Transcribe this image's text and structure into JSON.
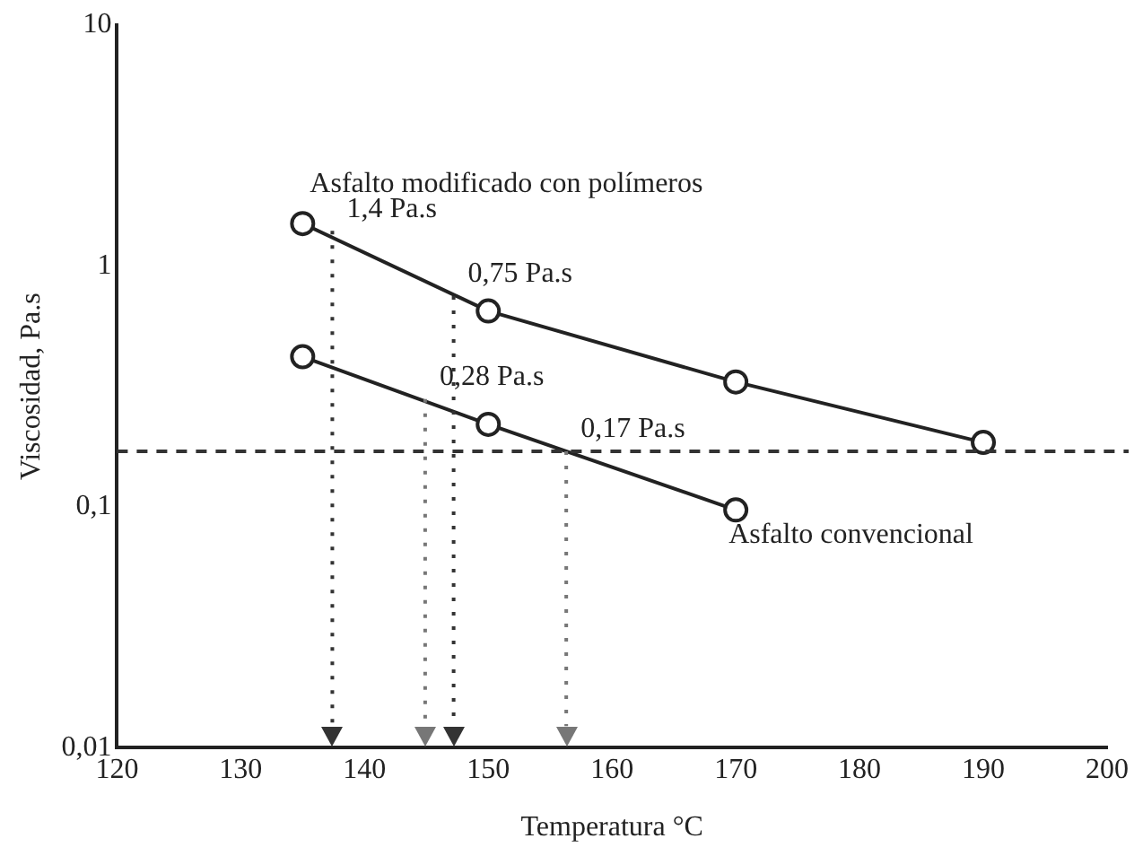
{
  "chart_data": {
    "type": "line",
    "xlabel": "Temperatura °C",
    "ylabel": "Viscosidad, Pa.s",
    "log": "y",
    "xlim": [
      120,
      200
    ],
    "xticks": [
      120,
      130,
      140,
      150,
      160,
      170,
      180,
      190,
      200
    ],
    "ylim": [
      0.01,
      10
    ],
    "yticks": [
      {
        "value": 0.01,
        "label": "0,01"
      },
      {
        "value": 0.1,
        "label": "0,1"
      },
      {
        "value": 1,
        "label": "1"
      },
      {
        "value": 10,
        "label": "10"
      }
    ],
    "grid": false,
    "legend": false,
    "marker": "circle",
    "line_style": "solid",
    "series": [
      {
        "name": "Asfalto modificado con polímeros",
        "color": "#222222",
        "x": [
          135,
          150,
          170,
          190
        ],
        "values": [
          1.5,
          0.65,
          0.33,
          0.185
        ]
      },
      {
        "name": "Asfalto convencional",
        "color": "#222222",
        "x": [
          135,
          150,
          170
        ],
        "values": [
          0.42,
          0.22,
          0.097
        ]
      }
    ],
    "ref_lines": [
      {
        "axis": "y",
        "value": 0.17,
        "color": "#333333",
        "line_style": "dashed"
      },
      {
        "axis": "x",
        "value": 137.4,
        "color": "#333333",
        "line_style": "dotted"
      },
      {
        "axis": "x",
        "value": 144.9,
        "color": "#777777",
        "line_style": "dotted"
      },
      {
        "axis": "x",
        "value": 147.2,
        "color": "#333333",
        "line_style": "dotted"
      },
      {
        "axis": "x",
        "value": 156.3,
        "color": "#777777",
        "line_style": "dotted"
      }
    ],
    "annotations": [
      {
        "text": "1,4 Pa.s",
        "x": 137.4,
        "y": 1.4
      },
      {
        "text": "0,75 Pa.s",
        "x": 147.2,
        "y": 0.75
      },
      {
        "text": "0,28 Pa.s",
        "x": 144.9,
        "y": 0.28
      },
      {
        "text": "0,17 Pa.s",
        "x": 156.3,
        "y": 0.17
      }
    ]
  }
}
